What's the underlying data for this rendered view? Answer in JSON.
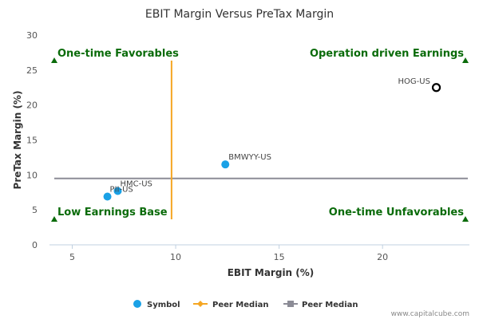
{
  "chart_data": {
    "type": "scatter",
    "title": "EBIT Margin Versus PreTax Margin",
    "xlabel": "EBIT Margin (%)",
    "ylabel": "PreTax Margin (%)",
    "xlim": [
      3.9,
      24.2
    ],
    "ylim": [
      0,
      30
    ],
    "xticks": [
      5,
      10,
      15,
      20
    ],
    "yticks": [
      0,
      5,
      10,
      15,
      20,
      25,
      30
    ],
    "points": [
      {
        "label": "HOG-US",
        "x": 22.6,
        "y": 22.5,
        "style": "hollow"
      },
      {
        "label": "BMWYY-US",
        "x": 12.4,
        "y": 11.5,
        "style": "filled"
      },
      {
        "label": "HMC-US",
        "x": 7.2,
        "y": 7.7,
        "style": "filled"
      },
      {
        "label": "PII-US",
        "x": 6.7,
        "y": 6.9,
        "style": "filled"
      }
    ],
    "peer_median_x": 9.8,
    "peer_median_y": 9.5,
    "quadrants": {
      "top_left": "One-time Favorables",
      "top_right": "Operation driven Earnings",
      "bottom_left": "Low Earnings Base",
      "bottom_right": "One-time Unfavorables"
    },
    "legend": [
      {
        "label": "Symbol",
        "kind": "dot",
        "color": "#1aa1e6"
      },
      {
        "label": "Peer Median",
        "kind": "line-diamond",
        "color": "#f5a623"
      },
      {
        "label": "Peer Median",
        "kind": "line-square",
        "color": "#8c8c96"
      }
    ],
    "colors": {
      "point": "#1aa1e6",
      "median_x": "#f5a623",
      "median_y": "#8c8c96",
      "quadrant_marker": "#0a6b0a",
      "axis": "#c0d0e0"
    }
  },
  "watermark": "www.capitalcube.com"
}
